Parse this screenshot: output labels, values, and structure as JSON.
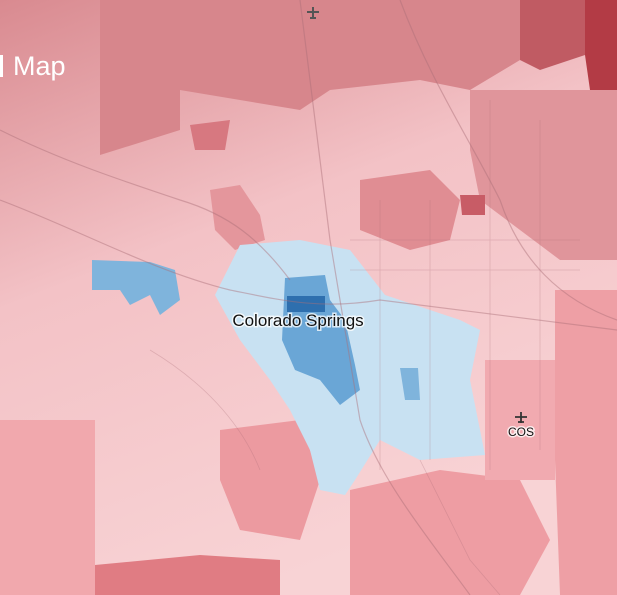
{
  "map": {
    "title": "Map",
    "city_label": "Colorado Springs",
    "airport_label": "COS"
  }
}
